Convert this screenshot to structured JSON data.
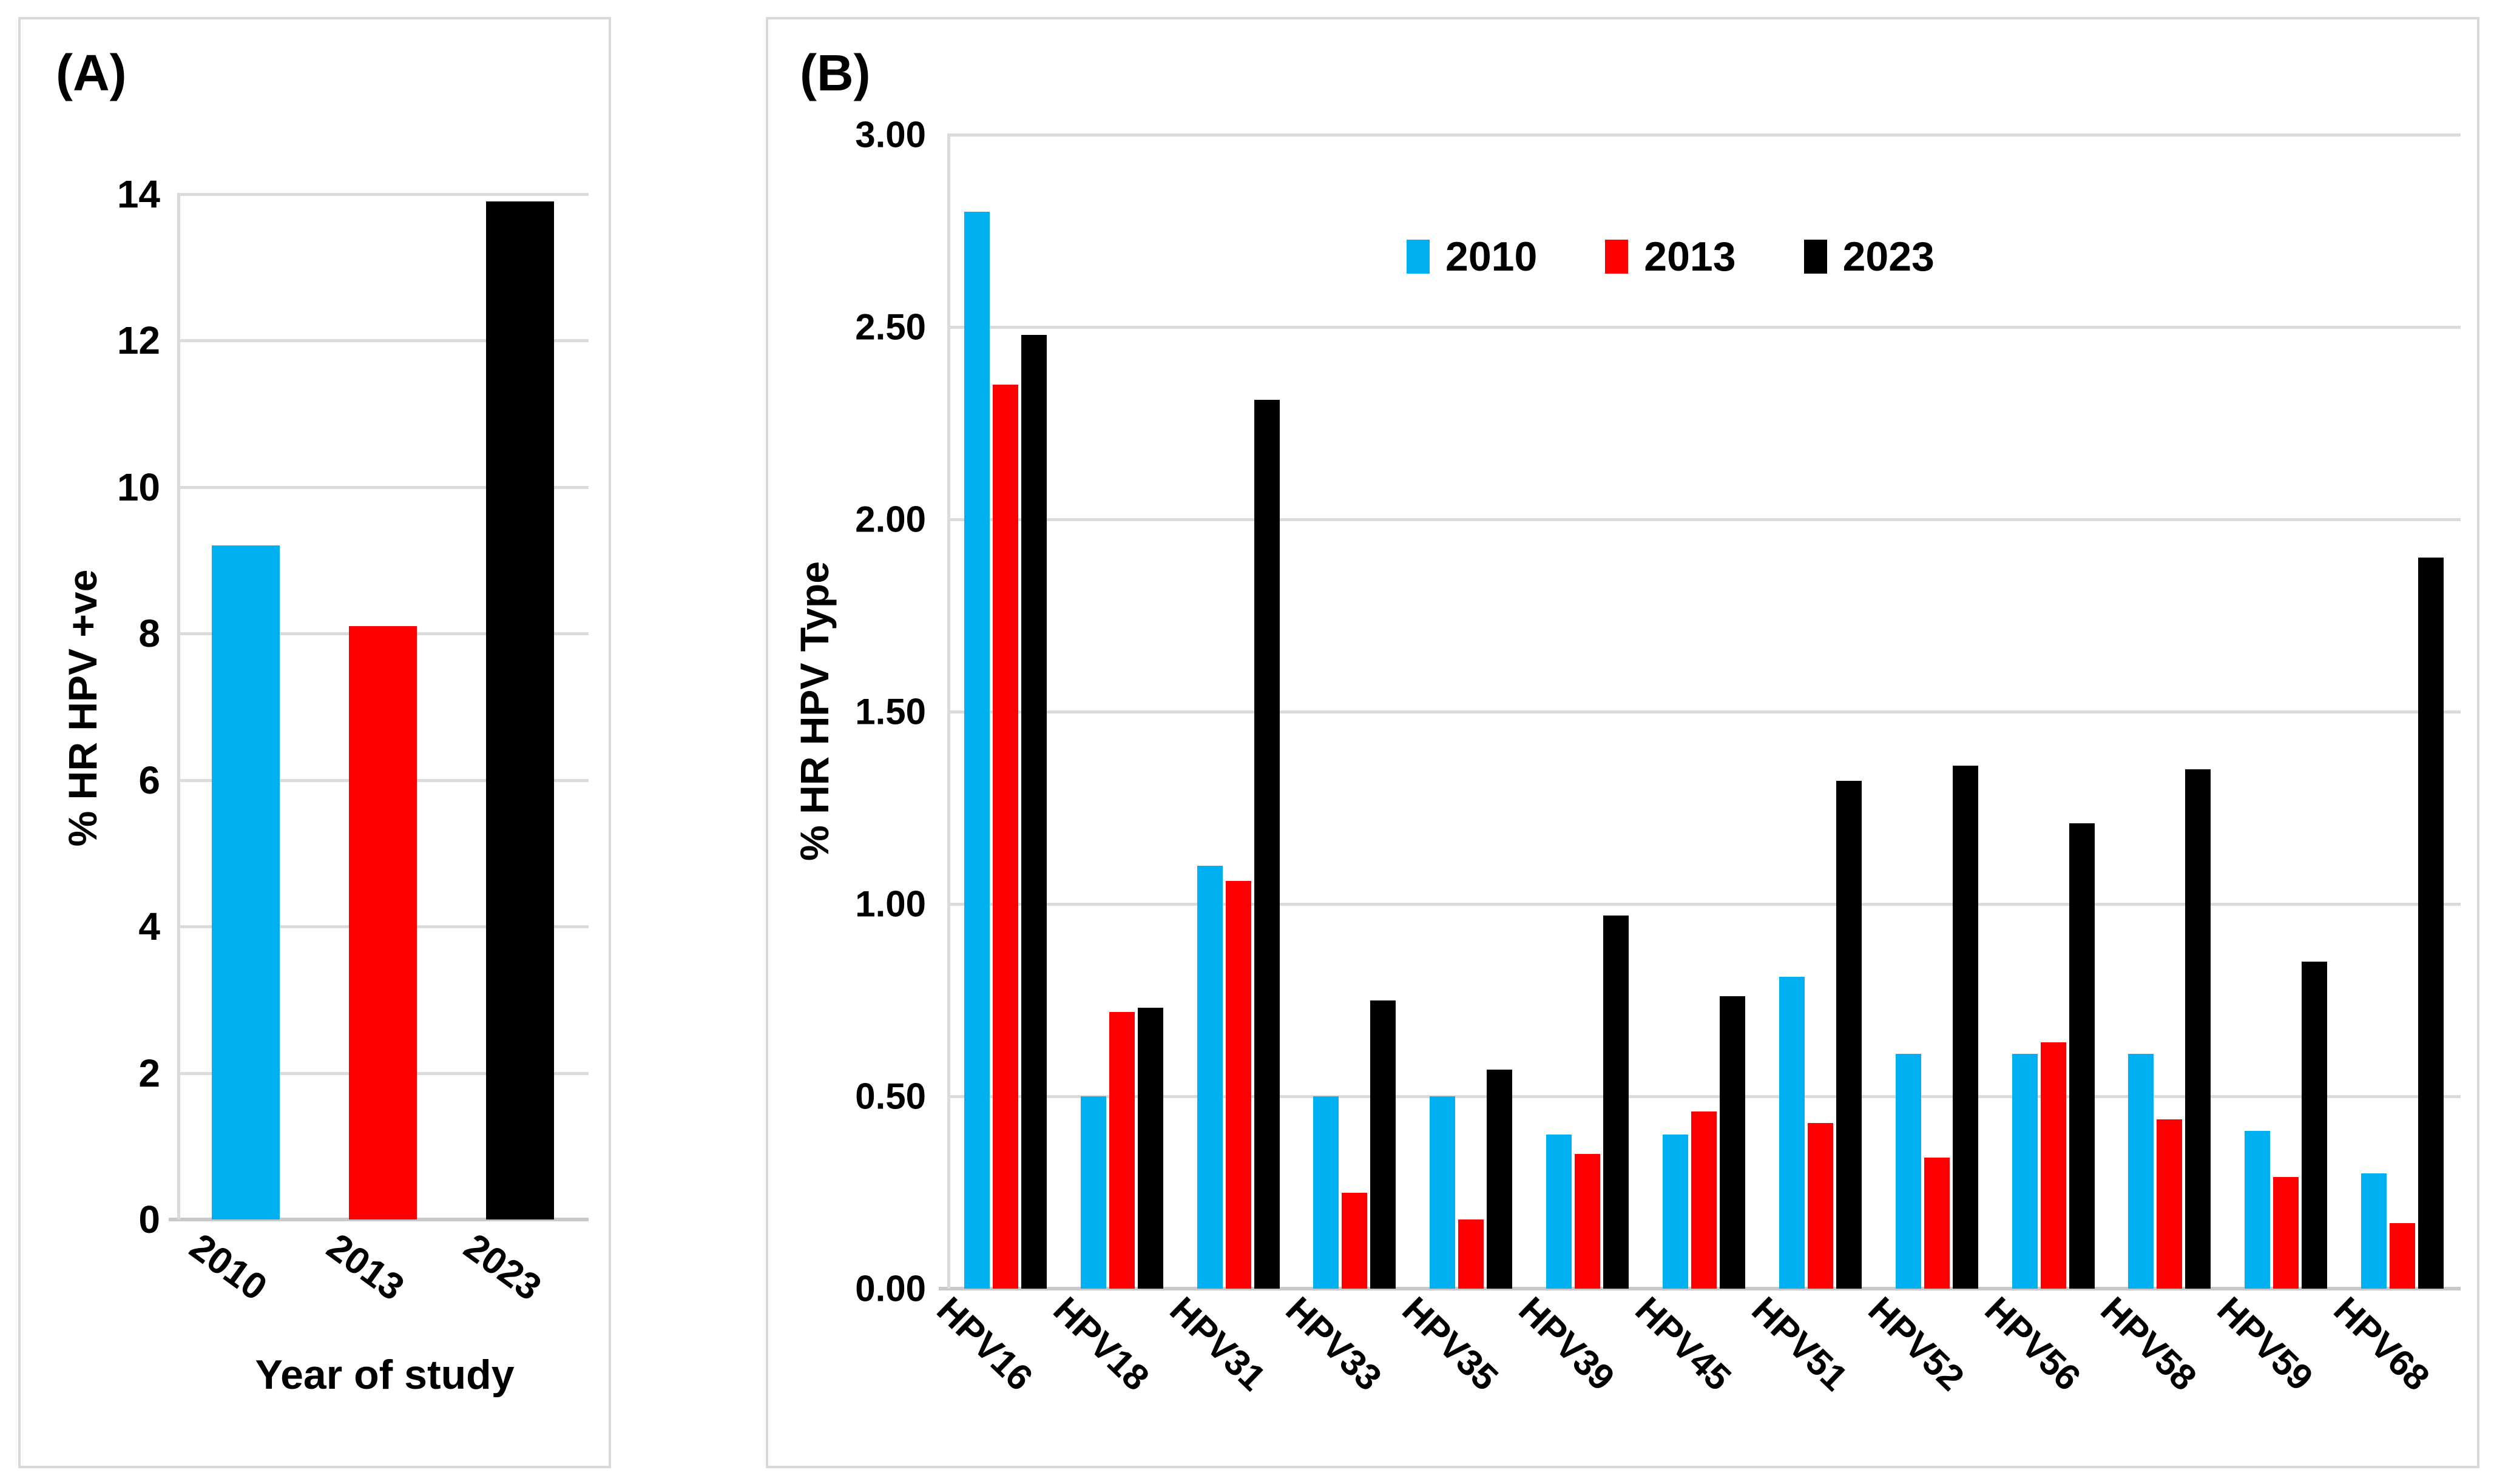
{
  "panels": {
    "a": {
      "label": "(A)",
      "y_axis_title": "% HR HPV +ve",
      "x_axis_title": "Year of study"
    },
    "b": {
      "label": "(B)",
      "y_axis_title": "% HR HPV Type"
    }
  },
  "legend": {
    "items": [
      {
        "label": "2010",
        "color": "#00B0F0"
      },
      {
        "label": "2013",
        "color": "#FF0000"
      },
      {
        "label": "2023",
        "color": "#000000"
      }
    ]
  },
  "chart_data": [
    {
      "id": "A",
      "type": "bar",
      "title": "(A)",
      "categories": [
        "2010",
        "2013",
        "2023"
      ],
      "values": [
        9.2,
        8.1,
        13.9
      ],
      "bar_colors": [
        "#00B0F0",
        "#FF0000",
        "#000000"
      ],
      "xlabel": "Year of study",
      "ylabel": "% HR HPV +ve",
      "ylim": [
        0,
        14
      ],
      "ytick_step": 2,
      "ytick_labels": [
        "0",
        "2",
        "4",
        "6",
        "8",
        "10",
        "12",
        "14"
      ],
      "grid": true,
      "legend_position": "none"
    },
    {
      "id": "B",
      "type": "bar",
      "title": "(B)",
      "categories": [
        "HPV16",
        "HPV18",
        "HPV31",
        "HPV33",
        "HPV35",
        "HPV39",
        "HPV45",
        "HPV51",
        "HPV52",
        "HPV56",
        "HPV58",
        "HPV59",
        "HPV68"
      ],
      "series": [
        {
          "name": "2010",
          "color": "#00B0F0",
          "values": [
            2.8,
            0.5,
            1.1,
            0.5,
            0.5,
            0.4,
            0.4,
            0.81,
            0.61,
            0.61,
            0.61,
            0.41,
            0.3
          ]
        },
        {
          "name": "2013",
          "color": "#FF0000",
          "values": [
            2.35,
            0.72,
            1.06,
            0.25,
            0.18,
            0.35,
            0.46,
            0.43,
            0.34,
            0.64,
            0.44,
            0.29,
            0.17
          ]
        },
        {
          "name": "2023",
          "color": "#000000",
          "values": [
            2.48,
            0.73,
            2.31,
            0.75,
            0.57,
            0.97,
            0.76,
            1.32,
            1.36,
            1.21,
            1.35,
            0.85,
            1.9
          ]
        }
      ],
      "xlabel": "",
      "ylabel": "% HR HPV Type",
      "ylim": [
        0,
        3
      ],
      "ytick_step": 0.5,
      "ytick_labels": [
        "0.00",
        "0.50",
        "1.00",
        "1.50",
        "2.00",
        "2.50",
        "3.00"
      ],
      "grid": true,
      "legend_position": "inside-top"
    }
  ],
  "colors": {
    "gridline": "#DBDBDB",
    "axis_line": "#C9C9C9",
    "panel_border": "#D9D9D9",
    "background": "#FFFFFF",
    "text": "#000000"
  }
}
